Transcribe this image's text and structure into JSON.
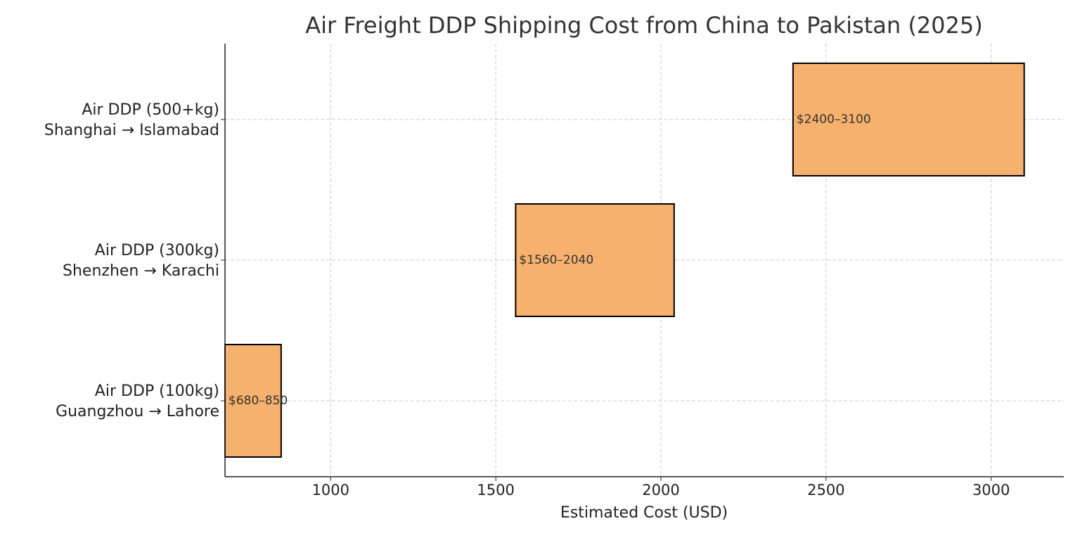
{
  "chart_data": {
    "type": "range_bar",
    "title": "Air Freight DDP Shipping Cost from China to Pakistan (2025)",
    "x_label": "Estimated Cost (USD)",
    "categories": [
      [
        "Air DDP (100kg)",
        "Guangzhou → Lahore"
      ],
      [
        "Air DDP (300kg)",
        "Shenzhen → Karachi"
      ],
      [
        "Air DDP (500+kg)",
        "Shanghai → Islamabad"
      ]
    ],
    "low": [
      680,
      1560,
      2400
    ],
    "high": [
      850,
      2040,
      3100
    ],
    "value_labels": [
      "$680–850",
      "$1560–2040",
      "$2400–3100"
    ],
    "color": "#f5b16d",
    "edge_color": "#000000",
    "xlim": [
      680,
      3220
    ],
    "xticks": [
      1000,
      1500,
      2000,
      2500,
      3000
    ],
    "grid": true
  }
}
